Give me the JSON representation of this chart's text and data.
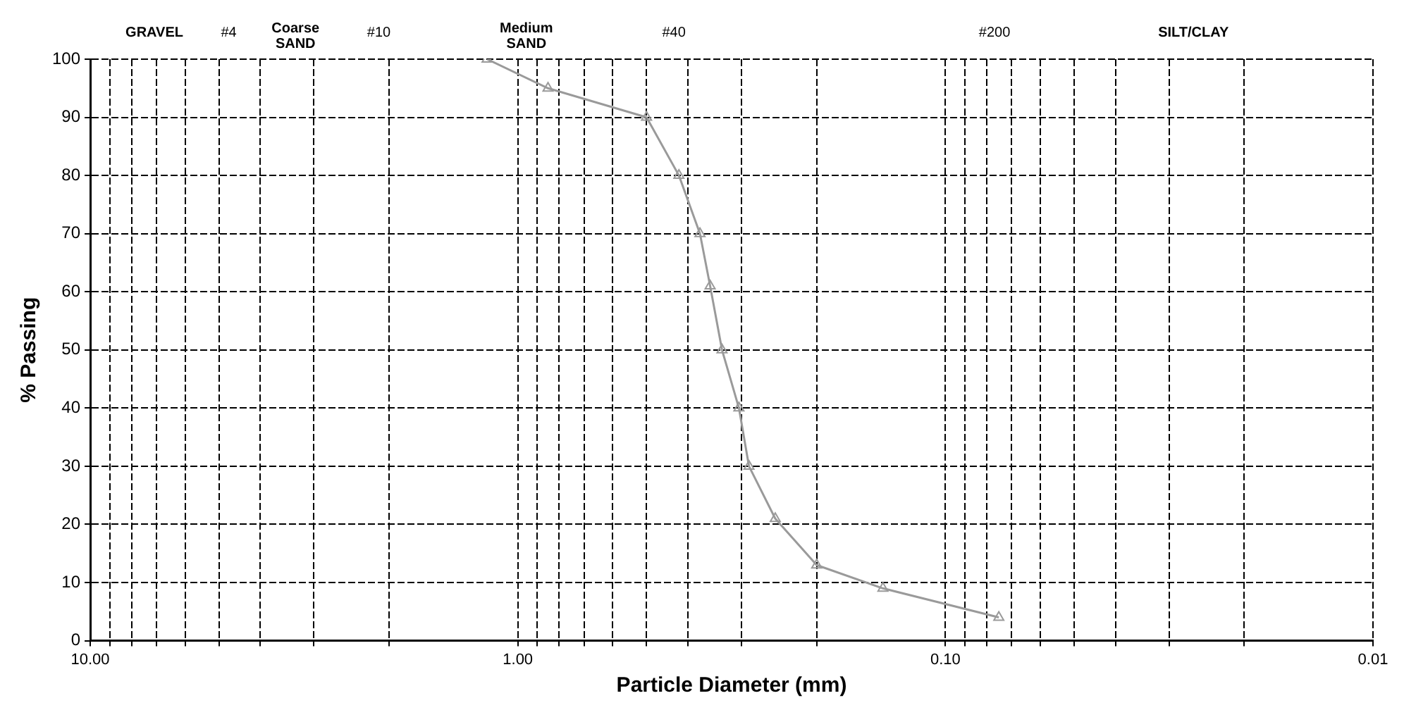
{
  "chart_data": {
    "type": "line",
    "xlabel": "Particle Diameter (mm)",
    "ylabel": "% Passing",
    "log": "x",
    "xlim": [
      10,
      0.01
    ],
    "ylim": [
      0,
      100
    ],
    "xticks": [
      {
        "value": 10,
        "label": "10.00"
      },
      {
        "value": 9,
        "label": null
      },
      {
        "value": 8,
        "label": null
      },
      {
        "value": 7,
        "label": null
      },
      {
        "value": 6,
        "label": null
      },
      {
        "value": 5,
        "label": null
      },
      {
        "value": 4,
        "label": null
      },
      {
        "value": 3,
        "label": null
      },
      {
        "value": 2,
        "label": null
      },
      {
        "value": 1,
        "label": "1.00"
      },
      {
        "value": 0.9,
        "label": null
      },
      {
        "value": 0.8,
        "label": null
      },
      {
        "value": 0.7,
        "label": null
      },
      {
        "value": 0.6,
        "label": null
      },
      {
        "value": 0.5,
        "label": null
      },
      {
        "value": 0.4,
        "label": null
      },
      {
        "value": 0.3,
        "label": null
      },
      {
        "value": 0.2,
        "label": null
      },
      {
        "value": 0.1,
        "label": "0.10"
      },
      {
        "value": 0.09,
        "label": null
      },
      {
        "value": 0.08,
        "label": null
      },
      {
        "value": 0.07,
        "label": null
      },
      {
        "value": 0.06,
        "label": null
      },
      {
        "value": 0.05,
        "label": null
      },
      {
        "value": 0.04,
        "label": null
      },
      {
        "value": 0.03,
        "label": null
      },
      {
        "value": 0.02,
        "label": null
      },
      {
        "value": 0.01,
        "label": "0.01"
      }
    ],
    "yticks": [
      0,
      10,
      20,
      30,
      40,
      50,
      60,
      70,
      80,
      90,
      100
    ],
    "grid": true,
    "marker": "triangle",
    "line_style": "solid",
    "series": [
      {
        "color": "#9a9a9a",
        "x": [
          1.18,
          0.85,
          0.5,
          0.42,
          0.375,
          0.355,
          0.333,
          0.304,
          0.288,
          0.25,
          0.2,
          0.14,
          0.075
        ],
        "values": [
          100,
          95,
          90,
          80,
          70,
          61,
          50,
          40,
          30,
          21,
          13,
          9,
          4
        ]
      }
    ],
    "annotations": [
      "GRAVEL",
      "#4",
      "Coarse\nSAND",
      "#10",
      "Medium\nSAND",
      "#40",
      "#200",
      "SILT/CLAY"
    ]
  }
}
